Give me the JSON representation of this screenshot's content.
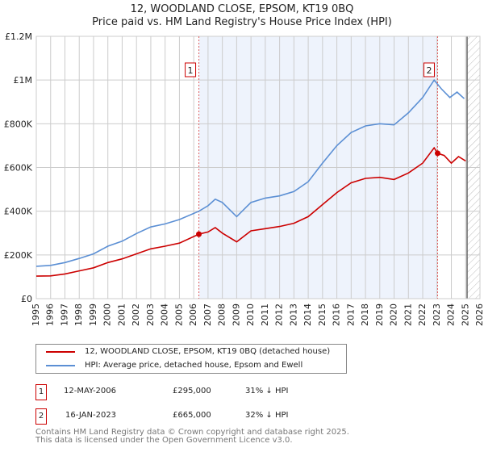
{
  "title": "12, WOODLAND CLOSE, EPSOM, KT19 0BQ",
  "subtitle": "Price paid vs. HM Land Registry's House Price Index (HPI)",
  "chart_data": {
    "type": "line",
    "title": "12, WOODLAND CLOSE, EPSOM, KT19 0BQ",
    "subtitle": "Price paid vs. HM Land Registry's House Price Index (HPI)",
    "xlim": [
      1995,
      2026
    ],
    "ylim": [
      0,
      1200000
    ],
    "x_ticks": [
      "1995",
      "1996",
      "1997",
      "1998",
      "1999",
      "2000",
      "2001",
      "2002",
      "2003",
      "2004",
      "2005",
      "2006",
      "2007",
      "2008",
      "2009",
      "2010",
      "2011",
      "2012",
      "2013",
      "2014",
      "2015",
      "2016",
      "2017",
      "2018",
      "2019",
      "2020",
      "2021",
      "2022",
      "2023",
      "2024",
      "2025",
      "2026"
    ],
    "y_ticks": [
      {
        "v": 0,
        "l": "£0"
      },
      {
        "v": 200000,
        "l": "£200K"
      },
      {
        "v": 400000,
        "l": "£400K"
      },
      {
        "v": 600000,
        "l": "£600K"
      },
      {
        "v": 800000,
        "l": "£800K"
      },
      {
        "v": 1000000,
        "l": "£1M"
      },
      {
        "v": 1200000,
        "l": "£1.2M"
      }
    ],
    "grid": true,
    "series": [
      {
        "name": "12, WOODLAND CLOSE, EPSOM, KT19 0BQ (detached house)",
        "color": "#cc0000",
        "x": [
          1995,
          1996,
          1997,
          1998,
          1999,
          2000,
          2001,
          2002,
          2003,
          2004,
          2005,
          2006.36,
          2007,
          2007.5,
          2008,
          2009,
          2010,
          2011,
          2012,
          2013,
          2014,
          2015,
          2016,
          2017,
          2018,
          2019,
          2020,
          2021,
          2022,
          2022.8,
          2023.04,
          2023.5,
          2024,
          2024.5,
          2025
        ],
        "y": [
          103000,
          104000,
          113000,
          127000,
          141000,
          165000,
          182000,
          205000,
          228000,
          240000,
          254000,
          295000,
          305000,
          325000,
          300000,
          260000,
          310000,
          320000,
          330000,
          345000,
          375000,
          430000,
          485000,
          530000,
          550000,
          555000,
          545000,
          575000,
          620000,
          690000,
          665000,
          655000,
          620000,
          650000,
          630000
        ]
      },
      {
        "name": "HPI: Average price, detached house, Epsom and Ewell",
        "color": "#5b8fd4",
        "x": [
          1995,
          1996,
          1997,
          1998,
          1999,
          2000,
          2001,
          2002,
          2003,
          2004,
          2005,
          2006.36,
          2007,
          2007.5,
          2008,
          2009,
          2010,
          2011,
          2012,
          2013,
          2014,
          2015,
          2016,
          2017,
          2018,
          2019,
          2020,
          2021,
          2022,
          2022.8,
          2023.3,
          2023.9,
          2024.4,
          2024.9
        ],
        "y": [
          148000,
          152000,
          165000,
          184000,
          205000,
          240000,
          263000,
          298000,
          328000,
          342000,
          362000,
          400000,
          425000,
          455000,
          440000,
          375000,
          440000,
          460000,
          470000,
          490000,
          535000,
          620000,
          700000,
          760000,
          790000,
          800000,
          795000,
          850000,
          920000,
          1000000,
          960000,
          920000,
          945000,
          915000
        ]
      }
    ],
    "sales": [
      {
        "n": "1",
        "x": 2006.36,
        "y": 295000
      },
      {
        "n": "2",
        "x": 2023.04,
        "y": 665000
      }
    ],
    "shaded": [
      2006.36,
      2023.04
    ],
    "hatched_from": 2025.1
  },
  "legend": [
    "12, WOODLAND CLOSE, EPSOM, KT19 0BQ (detached house)",
    "HPI: Average price, detached house, Epsom and Ewell"
  ],
  "transactions": [
    {
      "n": "1",
      "date": "12-MAY-2006",
      "price": "£295,000",
      "hpi": "31% ↓ HPI"
    },
    {
      "n": "2",
      "date": "16-JAN-2023",
      "price": "£665,000",
      "hpi": "32% ↓ HPI"
    }
  ],
  "footer": [
    "Contains HM Land Registry data © Crown copyright and database right 2025.",
    "This data is licensed under the Open Government Licence v3.0."
  ]
}
